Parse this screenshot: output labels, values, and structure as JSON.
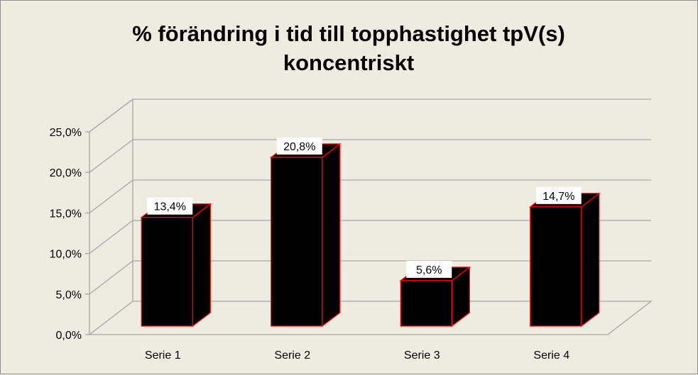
{
  "chart_data": {
    "type": "bar",
    "title": "% förändring i tid till topphastighet tpV(s) koncentriskt",
    "title_lines": [
      "% förändring i tid till topphastighet tpV(s)",
      "koncentriskt"
    ],
    "categories": [
      "Serie 1",
      "Serie 2",
      "Serie 3",
      "Serie 4"
    ],
    "values": [
      13.4,
      20.8,
      5.6,
      14.7
    ],
    "data_labels": [
      "13,4%",
      "20,8%",
      "5,6%",
      "14,7%"
    ],
    "ylim": [
      0,
      25
    ],
    "yticks": [
      0,
      5,
      10,
      15,
      20,
      25
    ],
    "ytick_labels": [
      "0,0%",
      "5,0%",
      "10,0%",
      "15,0%",
      "20,0%",
      "25,0%"
    ],
    "xlabel": "",
    "ylabel": "",
    "grid": true,
    "legend": false,
    "three_d": true,
    "colors": {
      "background": "#eeece1",
      "bar_fill": "#000000",
      "bar_edge": "#ff0000",
      "grid": "#a6a6a6"
    }
  }
}
